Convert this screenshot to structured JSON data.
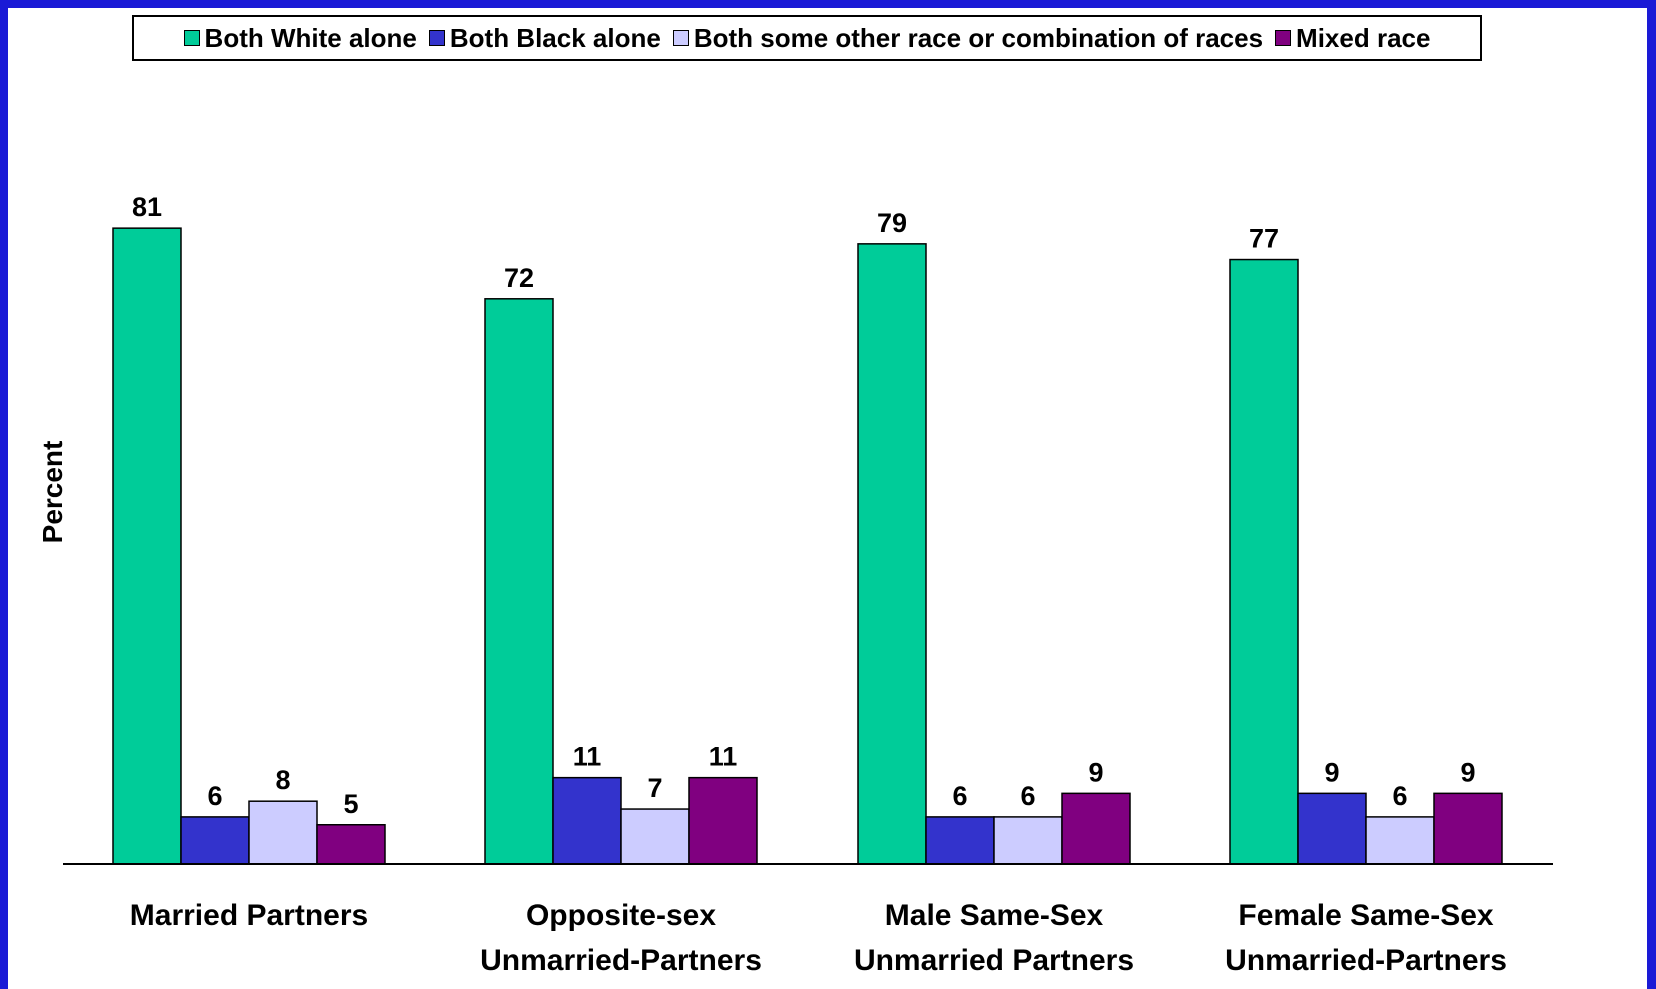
{
  "chart_data": {
    "type": "bar",
    "title": "",
    "ylabel": "Percent",
    "xlabel": "",
    "ylim": [
      0,
      85
    ],
    "grid": false,
    "legend_position": "top",
    "categories": [
      [
        "Married Partners"
      ],
      [
        "Opposite-sex",
        "Unmarried-Partners"
      ],
      [
        "Male Same-Sex",
        "Unmarried Partners"
      ],
      [
        "Female Same-Sex",
        "Unmarried-Partners"
      ]
    ],
    "series": [
      {
        "name": "Both White alone",
        "color": "#00cc99",
        "values": [
          81,
          72,
          79,
          77
        ]
      },
      {
        "name": "Both Black alone",
        "color": "#3333cc",
        "values": [
          6,
          11,
          6,
          9
        ]
      },
      {
        "name": "Both some other race or combination of races",
        "color": "#ccccff",
        "values": [
          8,
          7,
          6,
          6
        ]
      },
      {
        "name": "Mixed race",
        "color": "#800080",
        "values": [
          5,
          11,
          9,
          9
        ]
      }
    ]
  }
}
